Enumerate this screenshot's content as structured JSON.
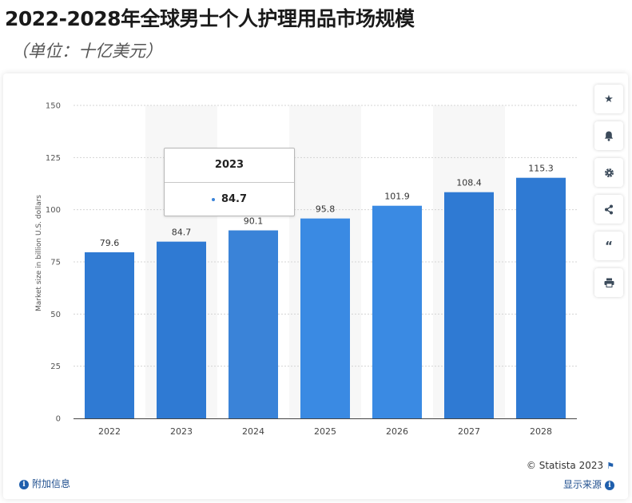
{
  "page": {
    "title": "2022-2028年全球男士个人护理用品市场规模",
    "subtitle": "（单位：十亿美元）"
  },
  "chart_data": {
    "type": "bar",
    "categories": [
      "2022",
      "2023",
      "2024",
      "2025",
      "2026",
      "2027",
      "2028"
    ],
    "values": [
      79.6,
      84.7,
      90.1,
      95.8,
      101.9,
      108.4,
      115.3
    ],
    "value_labels": [
      "79.6",
      "84.7",
      "90.1",
      "95.8",
      "101.9",
      "108.4",
      "115.3"
    ],
    "ylabel": "Market size in billion U.S. dollars",
    "ylim": [
      0,
      150
    ],
    "yticks": [
      0,
      25,
      50,
      75,
      100,
      125,
      150
    ],
    "grid": true,
    "bar_colors": [
      "#2f7ad3",
      "#2f7ad3",
      "#3a83d8",
      "#3a8ae3",
      "#3a8ae3",
      "#2f7ad3",
      "#2f7ad3"
    ]
  },
  "tooltip": {
    "title": "2023",
    "value": "84.7"
  },
  "toolbar": {
    "icons": [
      "star-icon",
      "bell-icon",
      "gear-icon",
      "share-icon",
      "quote-icon",
      "print-icon"
    ]
  },
  "footer": {
    "copyright": "© Statista 2023",
    "additional_info": "附加信息",
    "show_source": "显示来源"
  }
}
